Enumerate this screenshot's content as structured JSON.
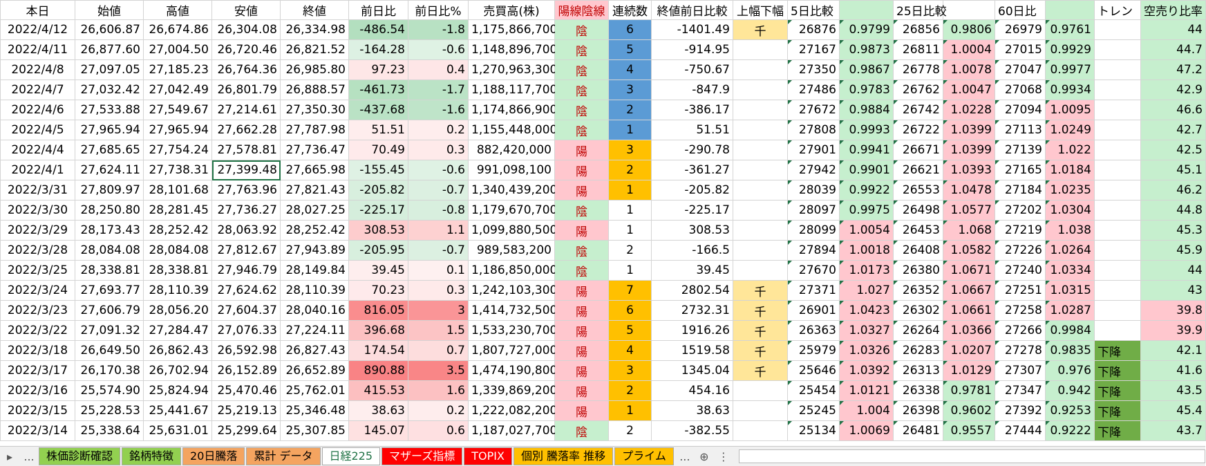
{
  "sheet": {
    "header": [
      "本日",
      "始値",
      "高値",
      "安値",
      "終値",
      "前日比",
      "前日比%",
      "売買高(株)",
      "陽線陰線",
      "連続数",
      "終値前日比較",
      "上幅下幅",
      "5日比較",
      null,
      "25日比較",
      null,
      "60日比",
      null,
      "トレン",
      "空売り比率"
    ],
    "rows": [
      [
        "2022/4/12",
        "26,606.87",
        "26,674.86",
        "26,304.08",
        "26,334.98",
        "-486.54",
        "-1.8",
        "1,175,866,700",
        "陰",
        "6",
        "-1401.49",
        "千",
        "26876",
        "0.9799",
        "26856",
        "0.9806",
        "26979",
        "0.9761",
        null,
        "44"
      ],
      [
        "2022/4/11",
        "26,877.60",
        "27,004.50",
        "26,720.46",
        "26,821.52",
        "-164.28",
        "-0.6",
        "1,148,896,700",
        "陰",
        "5",
        "-914.95",
        null,
        "27167",
        "0.9873",
        "26811",
        "1.0004",
        "27015",
        "0.9929",
        null,
        "44.7"
      ],
      [
        "2022/4/8",
        "27,097.05",
        "27,185.23",
        "26,764.36",
        "26,985.80",
        "97.23",
        "0.4",
        "1,270,963,300",
        "陰",
        "4",
        "-750.67",
        null,
        "27350",
        "0.9867",
        "26778",
        "1.0078",
        "27047",
        "0.9977",
        null,
        "47.2"
      ],
      [
        "2022/4/7",
        "27,032.42",
        "27,042.49",
        "26,801.79",
        "26,888.57",
        "-461.73",
        "-1.7",
        "1,188,117,700",
        "陰",
        "3",
        "-847.9",
        null,
        "27486",
        "0.9783",
        "26762",
        "1.0047",
        "27068",
        "0.9934",
        null,
        "42.9"
      ],
      [
        "2022/4/6",
        "27,533.88",
        "27,549.67",
        "27,214.61",
        "27,350.30",
        "-437.68",
        "-1.6",
        "1,174,866,900",
        "陰",
        "2",
        "-386.17",
        null,
        "27672",
        "0.9884",
        "26742",
        "1.0228",
        "27094",
        "1.0095",
        null,
        "46.6"
      ],
      [
        "2022/4/5",
        "27,965.94",
        "27,965.94",
        "27,662.28",
        "27,787.98",
        "51.51",
        "0.2",
        "1,155,448,000",
        "陰",
        "1",
        "51.51",
        null,
        "27808",
        "0.9993",
        "26722",
        "1.0399",
        "27113",
        "1.0249",
        null,
        "42.7"
      ],
      [
        "2022/4/4",
        "27,685.65",
        "27,754.24",
        "27,578.81",
        "27,736.47",
        "70.49",
        "0.3",
        "882,420,000",
        "陽",
        "3",
        "-290.78",
        null,
        "27901",
        "0.9941",
        "26671",
        "1.0399",
        "27139",
        "1.022",
        null,
        "42.5"
      ],
      [
        "2022/4/1",
        "27,624.11",
        "27,738.31",
        "27,399.48",
        "27,665.98",
        "-155.45",
        "-0.6",
        "991,098,100",
        "陽",
        "2",
        "-361.27",
        null,
        "27942",
        "0.9901",
        "26621",
        "1.0393",
        "27165",
        "1.0184",
        null,
        "45.1"
      ],
      [
        "2022/3/31",
        "27,809.97",
        "28,101.68",
        "27,763.96",
        "27,821.43",
        "-205.82",
        "-0.7",
        "1,340,439,200",
        "陽",
        "1",
        "-205.82",
        null,
        "28039",
        "0.9922",
        "26553",
        "1.0478",
        "27184",
        "1.0235",
        null,
        "46.2"
      ],
      [
        "2022/3/30",
        "28,250.80",
        "28,281.45",
        "27,736.27",
        "28,027.25",
        "-225.17",
        "-0.8",
        "1,179,670,700",
        "陰",
        "1",
        "-225.17",
        null,
        "28097",
        "0.9975",
        "26498",
        "1.0577",
        "27202",
        "1.0304",
        null,
        "44.8"
      ],
      [
        "2022/3/29",
        "28,173.43",
        "28,252.42",
        "28,063.92",
        "28,252.42",
        "308.53",
        "1.1",
        "1,099,880,500",
        "陽",
        "1",
        "308.53",
        null,
        "28099",
        "1.0054",
        "26453",
        "1.068",
        "27219",
        "1.038",
        null,
        "45.3"
      ],
      [
        "2022/3/28",
        "28,084.08",
        "28,084.08",
        "27,812.67",
        "27,943.89",
        "-205.95",
        "-0.7",
        "989,583,200",
        "陰",
        "2",
        "-166.5",
        null,
        "27894",
        "1.0018",
        "26408",
        "1.0582",
        "27226",
        "1.0264",
        null,
        "45.9"
      ],
      [
        "2022/3/25",
        "28,338.81",
        "28,338.81",
        "27,946.79",
        "28,149.84",
        "39.45",
        "0.1",
        "1,186,850,000",
        "陰",
        "1",
        "39.45",
        null,
        "27670",
        "1.0173",
        "26380",
        "1.0671",
        "27240",
        "1.0334",
        null,
        "44"
      ],
      [
        "2022/3/24",
        "27,693.77",
        "28,110.39",
        "27,624.62",
        "28,110.39",
        "70.23",
        "0.3",
        "1,242,103,300",
        "陽",
        "7",
        "2802.54",
        "千",
        "27371",
        "1.027",
        "26352",
        "1.0667",
        "27251",
        "1.0315",
        null,
        "43"
      ],
      [
        "2022/3/23",
        "27,606.79",
        "28,056.20",
        "27,604.37",
        "28,040.16",
        "816.05",
        "3",
        "1,414,732,500",
        "陽",
        "6",
        "2732.31",
        "千",
        "26901",
        "1.0423",
        "26302",
        "1.0661",
        "27258",
        "1.0287",
        null,
        "39.8"
      ],
      [
        "2022/3/22",
        "27,091.32",
        "27,284.47",
        "27,076.33",
        "27,224.11",
        "396.68",
        "1.5",
        "1,533,230,700",
        "陽",
        "5",
        "1916.26",
        "千",
        "26363",
        "1.0327",
        "26264",
        "1.0366",
        "27266",
        "0.9984",
        null,
        "39.9"
      ],
      [
        "2022/3/18",
        "26,649.50",
        "26,862.43",
        "26,592.98",
        "26,827.43",
        "174.54",
        "0.7",
        "1,807,727,000",
        "陽",
        "4",
        "1519.58",
        "千",
        "25979",
        "1.0326",
        "26283",
        "1.0207",
        "27278",
        "0.9835",
        "下降",
        "42.1"
      ],
      [
        "2022/3/17",
        "26,170.38",
        "26,702.94",
        "26,152.89",
        "26,652.89",
        "890.88",
        "3.5",
        "1,474,190,800",
        "陽",
        "3",
        "1345.04",
        "千",
        "25646",
        "1.0392",
        "26313",
        "1.0129",
        "27307",
        "0.976",
        "下降",
        "41.6"
      ],
      [
        "2022/3/16",
        "25,574.90",
        "25,824.94",
        "25,470.46",
        "25,762.01",
        "415.53",
        "1.6",
        "1,339,869,200",
        "陽",
        "2",
        "454.16",
        null,
        "25454",
        "1.0121",
        "26338",
        "0.9781",
        "27347",
        "0.942",
        "下降",
        "43.5"
      ],
      [
        "2022/3/15",
        "25,228.53",
        "25,441.67",
        "25,219.13",
        "25,346.48",
        "38.63",
        "0.2",
        "1,222,082,200",
        "陽",
        "1",
        "38.63",
        null,
        "25245",
        "1.004",
        "26398",
        "0.9602",
        "27392",
        "0.9253",
        "下降",
        "45.4"
      ],
      [
        "2022/3/14",
        "25,338.64",
        "25,631.01",
        "25,299.64",
        "25,307.85",
        "145.07",
        "0.6",
        "1,187,027,700",
        "陰",
        "2",
        "-382.55",
        null,
        "25134",
        "1.0069",
        "26481",
        "0.9557",
        "27444",
        "0.9222",
        "下降",
        "43.7"
      ]
    ],
    "tabs": [
      "株価診断確認",
      "銘柄特徴",
      "20日騰落",
      "累計 データ",
      "日経225",
      "マザーズ指標",
      "TOPIX",
      "個別 騰落率 推移",
      "プライム"
    ],
    "ellipsis": "..."
  }
}
